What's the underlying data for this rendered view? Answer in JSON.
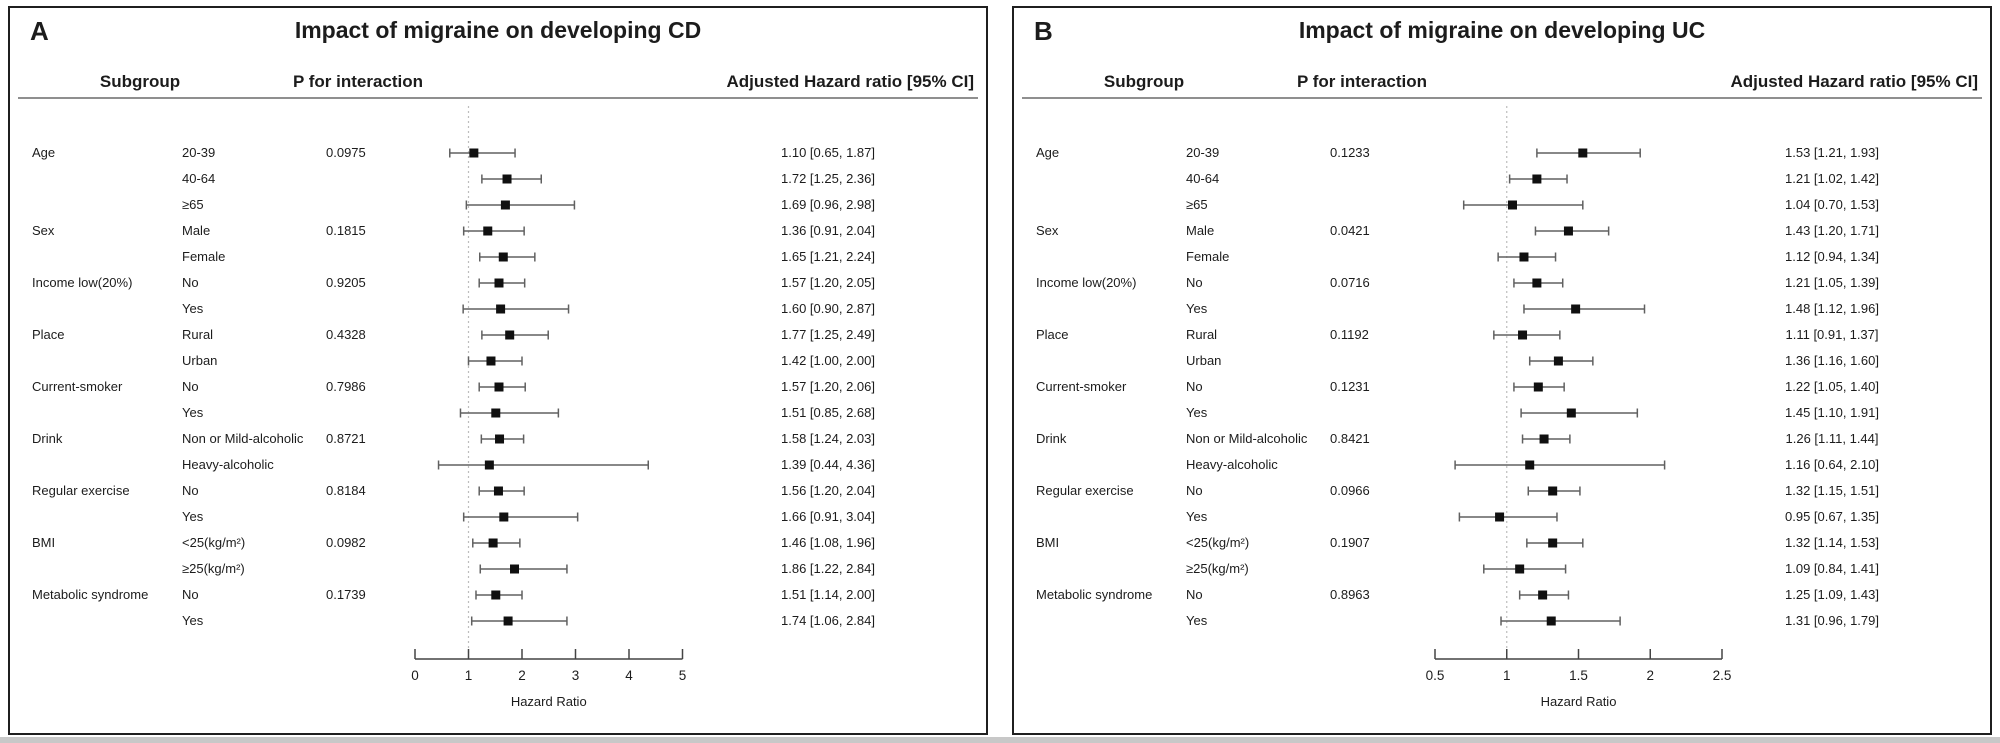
{
  "chart_data": [
    {
      "type": "forest",
      "panel_label": "A",
      "title": "Impact of migraine on developing CD",
      "column_headers": [
        "Subgroup",
        "P for interaction",
        "Adjusted Hazard ratio [95% CI]"
      ],
      "xlabel": "Hazard Ratio",
      "xlim": [
        0,
        5
      ],
      "xticks": [
        0,
        1,
        2,
        3,
        4,
        5
      ],
      "xtick_labels": [
        "0",
        "1",
        "2",
        "3",
        "4",
        "5"
      ],
      "ref_line": 1,
      "rows": [
        {
          "group": "Age",
          "level": "20-39",
          "p_interaction": "0.0975",
          "hr": 1.1,
          "ci_low": 0.65,
          "ci_high": 1.87,
          "label": "1.10 [0.65, 1.87]"
        },
        {
          "group": "",
          "level": "40-64",
          "p_interaction": "",
          "hr": 1.72,
          "ci_low": 1.25,
          "ci_high": 2.36,
          "label": "1.72 [1.25, 2.36]"
        },
        {
          "group": "",
          "level": "≥65",
          "p_interaction": "",
          "hr": 1.69,
          "ci_low": 0.96,
          "ci_high": 2.98,
          "label": "1.69 [0.96, 2.98]"
        },
        {
          "group": "Sex",
          "level": "Male",
          "p_interaction": "0.1815",
          "hr": 1.36,
          "ci_low": 0.91,
          "ci_high": 2.04,
          "label": "1.36 [0.91, 2.04]"
        },
        {
          "group": "",
          "level": "Female",
          "p_interaction": "",
          "hr": 1.65,
          "ci_low": 1.21,
          "ci_high": 2.24,
          "label": "1.65 [1.21, 2.24]"
        },
        {
          "group": "Income low(20%)",
          "level": "No",
          "p_interaction": "0.9205",
          "hr": 1.57,
          "ci_low": 1.2,
          "ci_high": 2.05,
          "label": "1.57 [1.20, 2.05]"
        },
        {
          "group": "",
          "level": "Yes",
          "p_interaction": "",
          "hr": 1.6,
          "ci_low": 0.9,
          "ci_high": 2.87,
          "label": "1.60 [0.90, 2.87]"
        },
        {
          "group": "Place",
          "level": "Rural",
          "p_interaction": "0.4328",
          "hr": 1.77,
          "ci_low": 1.25,
          "ci_high": 2.49,
          "label": "1.77 [1.25, 2.49]"
        },
        {
          "group": "",
          "level": "Urban",
          "p_interaction": "",
          "hr": 1.42,
          "ci_low": 1.0,
          "ci_high": 2.0,
          "label": "1.42 [1.00, 2.00]"
        },
        {
          "group": "Current-smoker",
          "level": "No",
          "p_interaction": "0.7986",
          "hr": 1.57,
          "ci_low": 1.2,
          "ci_high": 2.06,
          "label": "1.57 [1.20, 2.06]"
        },
        {
          "group": "",
          "level": "Yes",
          "p_interaction": "",
          "hr": 1.51,
          "ci_low": 0.85,
          "ci_high": 2.68,
          "label": "1.51 [0.85, 2.68]"
        },
        {
          "group": "Drink",
          "level": "Non or Mild-alcoholic",
          "p_interaction": "0.8721",
          "hr": 1.58,
          "ci_low": 1.24,
          "ci_high": 2.03,
          "label": "1.58 [1.24, 2.03]"
        },
        {
          "group": "",
          "level": "Heavy-alcoholic",
          "p_interaction": "",
          "hr": 1.39,
          "ci_low": 0.44,
          "ci_high": 4.36,
          "label": "1.39 [0.44, 4.36]"
        },
        {
          "group": "Regular exercise",
          "level": "No",
          "p_interaction": "0.8184",
          "hr": 1.56,
          "ci_low": 1.2,
          "ci_high": 2.04,
          "label": "1.56 [1.20, 2.04]"
        },
        {
          "group": "",
          "level": "Yes",
          "p_interaction": "",
          "hr": 1.66,
          "ci_low": 0.91,
          "ci_high": 3.04,
          "label": "1.66 [0.91, 3.04]"
        },
        {
          "group": "BMI",
          "level": "<25(kg/m²)",
          "p_interaction": "0.0982",
          "hr": 1.46,
          "ci_low": 1.08,
          "ci_high": 1.96,
          "label": "1.46 [1.08, 1.96]"
        },
        {
          "group": "",
          "level": "≥25(kg/m²)",
          "p_interaction": "",
          "hr": 1.86,
          "ci_low": 1.22,
          "ci_high": 2.84,
          "label": "1.86 [1.22, 2.84]"
        },
        {
          "group": "Metabolic syndrome",
          "level": "No",
          "p_interaction": "0.1739",
          "hr": 1.51,
          "ci_low": 1.14,
          "ci_high": 2.0,
          "label": "1.51 [1.14, 2.00]"
        },
        {
          "group": "",
          "level": "Yes",
          "p_interaction": "",
          "hr": 1.74,
          "ci_low": 1.06,
          "ci_high": 2.84,
          "label": "1.74 [1.06, 2.84]"
        }
      ]
    },
    {
      "type": "forest",
      "panel_label": "B",
      "title": "Impact of migraine on developing UC",
      "column_headers": [
        "Subgroup",
        "P for interaction",
        "Adjusted Hazard ratio [95% CI]"
      ],
      "xlabel": "Hazard Ratio",
      "xlim": [
        0.5,
        2.5
      ],
      "xticks": [
        0.5,
        1,
        1.5,
        2,
        2.5
      ],
      "xtick_labels": [
        "0.5",
        "1",
        "1.5",
        "2",
        "2.5"
      ],
      "ref_line": 1,
      "rows": [
        {
          "group": "Age",
          "level": "20-39",
          "p_interaction": "0.1233",
          "hr": 1.53,
          "ci_low": 1.21,
          "ci_high": 1.93,
          "label": "1.53 [1.21, 1.93]"
        },
        {
          "group": "",
          "level": "40-64",
          "p_interaction": "",
          "hr": 1.21,
          "ci_low": 1.02,
          "ci_high": 1.42,
          "label": "1.21 [1.02, 1.42]"
        },
        {
          "group": "",
          "level": "≥65",
          "p_interaction": "",
          "hr": 1.04,
          "ci_low": 0.7,
          "ci_high": 1.53,
          "label": "1.04 [0.70, 1.53]"
        },
        {
          "group": "Sex",
          "level": "Male",
          "p_interaction": "0.0421",
          "hr": 1.43,
          "ci_low": 1.2,
          "ci_high": 1.71,
          "label": "1.43 [1.20, 1.71]"
        },
        {
          "group": "",
          "level": "Female",
          "p_interaction": "",
          "hr": 1.12,
          "ci_low": 0.94,
          "ci_high": 1.34,
          "label": "1.12 [0.94, 1.34]"
        },
        {
          "group": "Income low(20%)",
          "level": "No",
          "p_interaction": "0.0716",
          "hr": 1.21,
          "ci_low": 1.05,
          "ci_high": 1.39,
          "label": "1.21 [1.05, 1.39]"
        },
        {
          "group": "",
          "level": "Yes",
          "p_interaction": "",
          "hr": 1.48,
          "ci_low": 1.12,
          "ci_high": 1.96,
          "label": "1.48 [1.12, 1.96]"
        },
        {
          "group": "Place",
          "level": "Rural",
          "p_interaction": "0.1192",
          "hr": 1.11,
          "ci_low": 0.91,
          "ci_high": 1.37,
          "label": "1.11 [0.91, 1.37]"
        },
        {
          "group": "",
          "level": "Urban",
          "p_interaction": "",
          "hr": 1.36,
          "ci_low": 1.16,
          "ci_high": 1.6,
          "label": "1.36 [1.16, 1.60]"
        },
        {
          "group": "Current-smoker",
          "level": "No",
          "p_interaction": "0.1231",
          "hr": 1.22,
          "ci_low": 1.05,
          "ci_high": 1.4,
          "label": "1.22 [1.05, 1.40]"
        },
        {
          "group": "",
          "level": "Yes",
          "p_interaction": "",
          "hr": 1.45,
          "ci_low": 1.1,
          "ci_high": 1.91,
          "label": "1.45 [1.10, 1.91]"
        },
        {
          "group": "Drink",
          "level": "Non or Mild-alcoholic",
          "p_interaction": "0.8421",
          "hr": 1.26,
          "ci_low": 1.11,
          "ci_high": 1.44,
          "label": "1.26 [1.11, 1.44]"
        },
        {
          "group": "",
          "level": "Heavy-alcoholic",
          "p_interaction": "",
          "hr": 1.16,
          "ci_low": 0.64,
          "ci_high": 2.1,
          "label": "1.16 [0.64, 2.10]"
        },
        {
          "group": "Regular exercise",
          "level": "No",
          "p_interaction": "0.0966",
          "hr": 1.32,
          "ci_low": 1.15,
          "ci_high": 1.51,
          "label": "1.32 [1.15, 1.51]"
        },
        {
          "group": "",
          "level": "Yes",
          "p_interaction": "",
          "hr": 0.95,
          "ci_low": 0.67,
          "ci_high": 1.35,
          "label": "0.95 [0.67, 1.35]"
        },
        {
          "group": "BMI",
          "level": "<25(kg/m²)",
          "p_interaction": "0.1907",
          "hr": 1.32,
          "ci_low": 1.14,
          "ci_high": 1.53,
          "label": "1.32 [1.14, 1.53]"
        },
        {
          "group": "",
          "level": "≥25(kg/m²)",
          "p_interaction": "",
          "hr": 1.09,
          "ci_low": 0.84,
          "ci_high": 1.41,
          "label": "1.09 [0.84, 1.41]"
        },
        {
          "group": "Metabolic syndrome",
          "level": "No",
          "p_interaction": "0.8963",
          "hr": 1.25,
          "ci_low": 1.09,
          "ci_high": 1.43,
          "label": "1.25 [1.09, 1.43]"
        },
        {
          "group": "",
          "level": "Yes",
          "p_interaction": "",
          "hr": 1.31,
          "ci_low": 0.96,
          "ci_high": 1.79,
          "label": "1.31 [0.96, 1.79]"
        }
      ]
    }
  ]
}
